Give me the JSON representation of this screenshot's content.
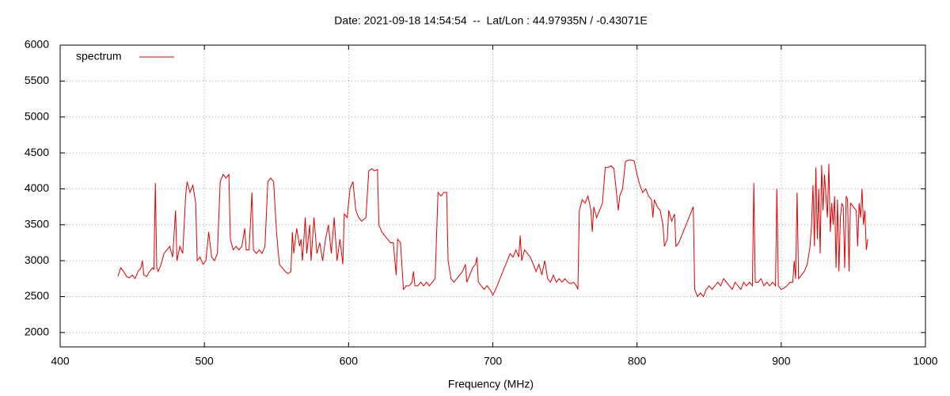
{
  "chart_data": {
    "type": "line",
    "title": "Date: 2021-09-18 14:54:54  --  Lat/Lon : 44.97935N / -0.43071E",
    "x_label": "Frequency (MHz)",
    "xlim": [
      400,
      1000
    ],
    "xticks": [
      400,
      500,
      600,
      700,
      800,
      900,
      1000
    ],
    "ylim": [
      1800,
      6000
    ],
    "yticks": [
      2000,
      2500,
      3000,
      3500,
      4000,
      4500,
      5000,
      5500,
      6000
    ],
    "grid": true,
    "legend": "upper left",
    "x": [
      440,
      442,
      444,
      446,
      448,
      450,
      452,
      454,
      456,
      457,
      458,
      460,
      462,
      464,
      465,
      466,
      467,
      468,
      470,
      472,
      474,
      476,
      478,
      480,
      481,
      483,
      485,
      487,
      488,
      490,
      492,
      494,
      495,
      497,
      499,
      501,
      503,
      505,
      507,
      509,
      511,
      513,
      515,
      517,
      518,
      520,
      522,
      524,
      526,
      528,
      529,
      531,
      533,
      534,
      536,
      538,
      540,
      542,
      544,
      546,
      548,
      550,
      552,
      554,
      556,
      558,
      560,
      561,
      562,
      564,
      566,
      567,
      568,
      570,
      571,
      573,
      574,
      576,
      578,
      580,
      582,
      584,
      586,
      588,
      590,
      592,
      594,
      596,
      597,
      599,
      601,
      603,
      605,
      607,
      609,
      612,
      614,
      616,
      618,
      620,
      621,
      623,
      625,
      627,
      629,
      631,
      633,
      634,
      636,
      638,
      640,
      642,
      644,
      645,
      646,
      648,
      650,
      652,
      654,
      656,
      658,
      660,
      662,
      664,
      666,
      668,
      669,
      671,
      673,
      675,
      677,
      679,
      681,
      682,
      684,
      686,
      688,
      689,
      690,
      692,
      694,
      696,
      698,
      700,
      702,
      704,
      706,
      708,
      710,
      712,
      714,
      716,
      718,
      719,
      720,
      722,
      724,
      726,
      728,
      730,
      732,
      734,
      736,
      738,
      740,
      742,
      744,
      746,
      748,
      750,
      752,
      754,
      756,
      758,
      759,
      760,
      762,
      764,
      766,
      768,
      769,
      770,
      772,
      774,
      776,
      778,
      780,
      782,
      784,
      786,
      787,
      788,
      790,
      792,
      794,
      796,
      798,
      800,
      802,
      804,
      806,
      808,
      810,
      811,
      812,
      814,
      816,
      818,
      819,
      821,
      822,
      824,
      826,
      827,
      829,
      831,
      833,
      835,
      837,
      839,
      840,
      842,
      844,
      846,
      848,
      850,
      852,
      854,
      856,
      858,
      860,
      862,
      864,
      866,
      868,
      870,
      872,
      874,
      876,
      878,
      880,
      881,
      882,
      884,
      886,
      888,
      890,
      892,
      894,
      896,
      897,
      898,
      900,
      902,
      904,
      906,
      908,
      909,
      910,
      911,
      912,
      914,
      916,
      918,
      920,
      921,
      922,
      923,
      924,
      925,
      926,
      927,
      928,
      929,
      930,
      931,
      932,
      933,
      934,
      935,
      936,
      937,
      938,
      939,
      940,
      941,
      942,
      943,
      944,
      945,
      946,
      947,
      948,
      950,
      952,
      953,
      954,
      955,
      956,
      957,
      958,
      959,
      960
    ],
    "series": [
      {
        "name": "spectrum",
        "color": "#e00000",
        "values": [
          2780,
          2900,
          2850,
          2780,
          2760,
          2800,
          2750,
          2850,
          2900,
          3000,
          2800,
          2780,
          2850,
          2900,
          2880,
          4080,
          2900,
          2850,
          2950,
          3100,
          3150,
          3200,
          3050,
          3700,
          3000,
          3200,
          3100,
          3900,
          4100,
          3950,
          4050,
          3800,
          3000,
          3050,
          2950,
          3000,
          3400,
          3050,
          3000,
          3100,
          4100,
          4200,
          4150,
          4200,
          3300,
          3150,
          3200,
          3150,
          3200,
          3450,
          3150,
          3150,
          3950,
          3150,
          3100,
          3150,
          3100,
          3200,
          4100,
          4150,
          4100,
          3400,
          2950,
          2900,
          2850,
          2820,
          2850,
          3400,
          3100,
          3450,
          3200,
          3300,
          3000,
          3600,
          3100,
          3500,
          3000,
          3600,
          3100,
          3250,
          3000,
          3300,
          3500,
          3100,
          3600,
          3000,
          3300,
          2950,
          3650,
          3600,
          4000,
          4100,
          3700,
          3600,
          3550,
          3600,
          4250,
          4280,
          4250,
          4270,
          3500,
          3400,
          3350,
          3300,
          3250,
          3250,
          2800,
          3300,
          3250,
          2600,
          2650,
          2650,
          2700,
          2850,
          2650,
          2650,
          2700,
          2650,
          2700,
          2650,
          2700,
          2750,
          3950,
          3900,
          3950,
          3950,
          3000,
          2750,
          2700,
          2750,
          2800,
          2850,
          2950,
          2700,
          2800,
          2900,
          2950,
          3050,
          2700,
          2650,
          2600,
          2650,
          2600,
          2520,
          2600,
          2700,
          2800,
          2900,
          3000,
          3100,
          3050,
          3150,
          3050,
          3350,
          3000,
          3150,
          3100,
          3050,
          2950,
          2850,
          2950,
          2800,
          3000,
          2750,
          2700,
          2800,
          2700,
          2750,
          2700,
          2750,
          2700,
          2680,
          2700,
          2650,
          2600,
          3700,
          3850,
          3800,
          3900,
          3700,
          3400,
          3750,
          3600,
          3700,
          3800,
          4300,
          4300,
          4320,
          4280,
          3900,
          3700,
          3900,
          4000,
          4380,
          4400,
          4400,
          4390,
          4200,
          4050,
          3950,
          4000,
          3900,
          3850,
          3600,
          3850,
          3750,
          3700,
          3500,
          3200,
          3300,
          3700,
          3550,
          3650,
          3200,
          3250,
          3350,
          3450,
          3550,
          3650,
          3750,
          2600,
          2500,
          2550,
          2500,
          2600,
          2650,
          2600,
          2650,
          2700,
          2650,
          2750,
          2700,
          2650,
          2600,
          2700,
          2650,
          2600,
          2700,
          2650,
          2700,
          2650,
          4080,
          2700,
          2700,
          2750,
          2650,
          2700,
          2650,
          2700,
          2650,
          4000,
          2650,
          2600,
          2620,
          2650,
          2700,
          2700,
          3000,
          2750,
          3950,
          2750,
          2800,
          2850,
          2950,
          3200,
          3500,
          4050,
          3200,
          4300,
          3300,
          4000,
          3100,
          4330,
          3700,
          4200,
          3900,
          3600,
          4350,
          3400,
          3800,
          3500,
          3900,
          2900,
          3850,
          2850,
          3600,
          3800,
          3750,
          2900,
          3900,
          3850,
          2850,
          3800,
          3750,
          3700,
          3200,
          3800,
          3600,
          4000,
          3500,
          3700,
          3150,
          3300
        ]
      }
    ]
  }
}
